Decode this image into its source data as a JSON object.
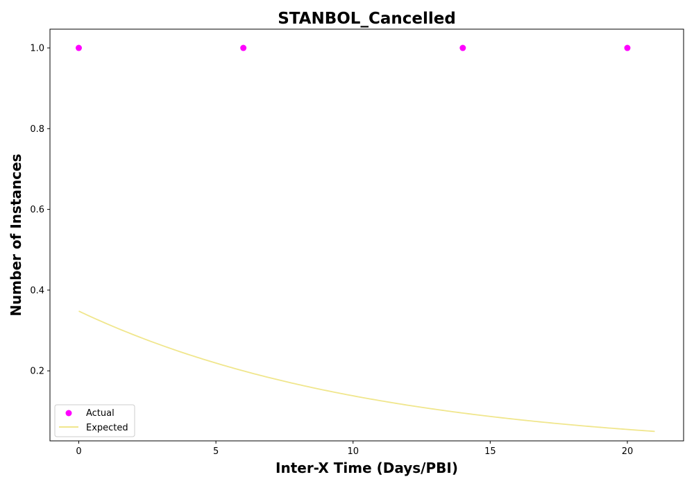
{
  "chart_data": {
    "type": "scatter",
    "title": "STANBOL_Cancelled",
    "xlabel": "Inter-X Time (Days/PBI)",
    "ylabel": "Number of Instances",
    "xlim": [
      -1.05,
      22.05
    ],
    "ylim": [
      0.0265,
      1.0465
    ],
    "x_ticks": [
      0,
      5,
      10,
      15,
      20
    ],
    "y_ticks": [
      0.2,
      0.4,
      0.6,
      0.8,
      1.0
    ],
    "x_tick_labels": [
      "0",
      "5",
      "10",
      "15",
      "20"
    ],
    "y_tick_labels": [
      "0.2",
      "0.4",
      "0.6",
      "0.8",
      "1.0"
    ],
    "grid": false,
    "legend_position": "lower-left",
    "series": [
      {
        "name": "Actual",
        "kind": "scatter",
        "color": "#ff00ff",
        "x": [
          0,
          6,
          14,
          20
        ],
        "y": [
          1.0,
          1.0,
          1.0,
          1.0
        ]
      },
      {
        "name": "Expected",
        "kind": "line",
        "color": "#f0e68c",
        "x": [
          0,
          1,
          2,
          3,
          4,
          5,
          6,
          7,
          8,
          9,
          10,
          11,
          12,
          13,
          14,
          15,
          16,
          17,
          18,
          19,
          20,
          21
        ],
        "y": [
          0.348,
          0.318,
          0.29,
          0.264,
          0.241,
          0.22,
          0.2,
          0.183,
          0.167,
          0.152,
          0.139,
          0.126,
          0.115,
          0.105,
          0.096,
          0.087,
          0.08,
          0.073,
          0.066,
          0.06,
          0.055,
          0.05
        ]
      }
    ]
  }
}
